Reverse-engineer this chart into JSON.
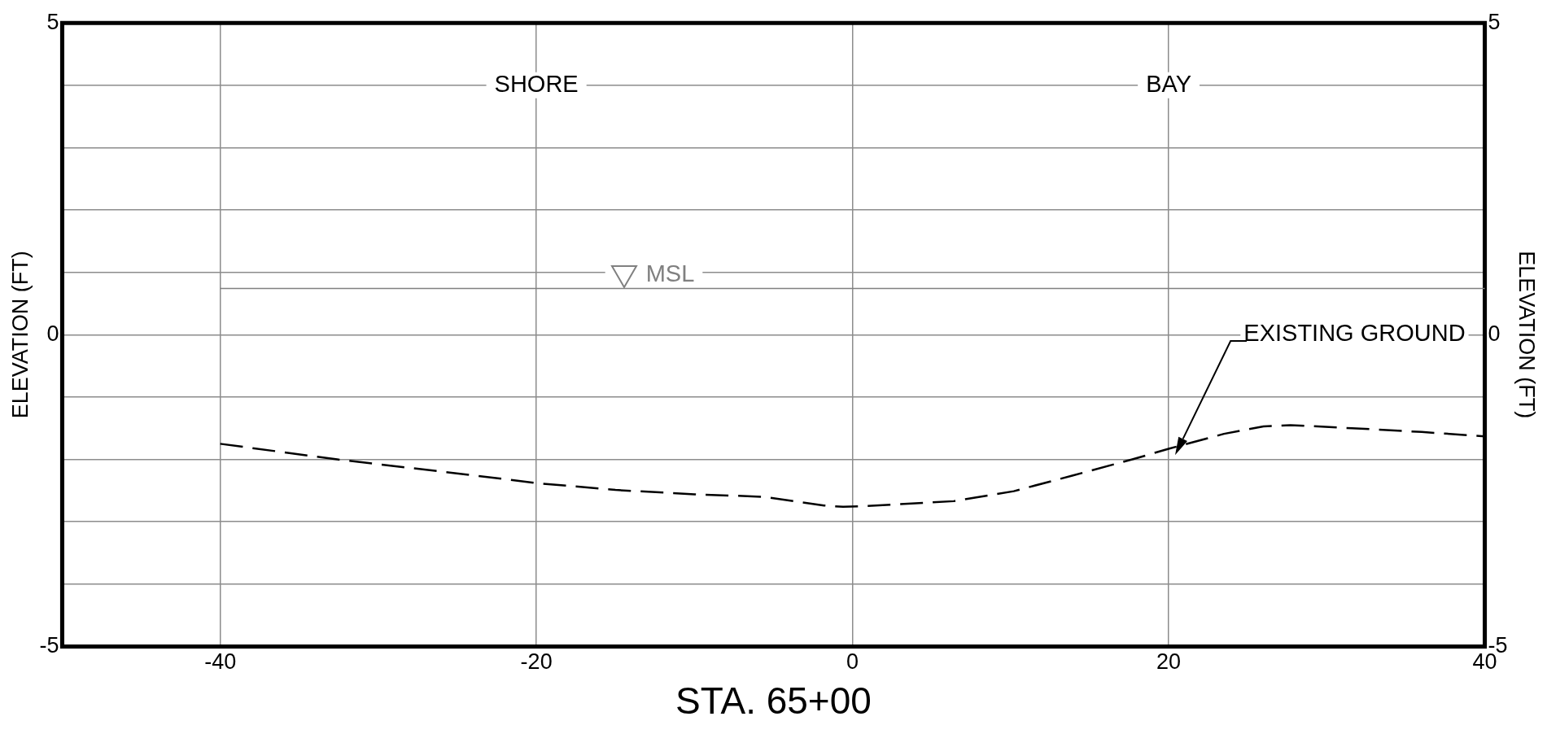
{
  "chart_data": {
    "type": "line",
    "xlabel": "STA. 65+00",
    "ylabel": "ELEVATION (FT)",
    "y2label": "ELEVATION (FT)",
    "x": [
      -40,
      -32.6,
      -24.5,
      -20,
      -15,
      -10,
      -5.6,
      -1.8,
      -0.6,
      0.8,
      6.4,
      10.2,
      13.9,
      17.7,
      20,
      23.5,
      26,
      27.7,
      31.6,
      36,
      40
    ],
    "series": [
      {
        "color": "#000000",
        "line_style": "dashed",
        "values": [
          -1.75,
          -2.0,
          -2.24,
          -2.38,
          -2.49,
          -2.56,
          -2.6,
          -2.74,
          -2.76,
          -2.75,
          -2.67,
          -2.51,
          -2.26,
          -2.0,
          -1.83,
          -1.59,
          -1.47,
          -1.45,
          -1.5,
          -1.56,
          -1.63
        ]
      }
    ],
    "xlim": [
      -50,
      40
    ],
    "xticks": [
      -40,
      -20,
      0,
      20,
      40
    ],
    "ylim": [
      -5,
      5
    ],
    "yticks": [
      -5,
      {
        "value": -4,
        "label": null
      },
      {
        "value": -3,
        "label": null
      },
      {
        "value": -2,
        "label": null
      },
      {
        "value": -1,
        "label": null
      },
      0,
      {
        "value": 1,
        "label": null
      },
      {
        "value": 2,
        "label": null
      },
      {
        "value": 3,
        "label": null
      },
      {
        "value": 4,
        "label": null
      },
      5
    ],
    "y2lim": [
      -5,
      5
    ],
    "y2ticks": [
      -5,
      0,
      5
    ],
    "grid": true,
    "legend": false,
    "marker": "none",
    "ref_lines": [
      {
        "axis": "y",
        "value": 0.74,
        "label": "MSL",
        "color": "#808080"
      }
    ],
    "annotations": [
      "SHORE",
      "BAY",
      "EXISTING GROUND"
    ]
  }
}
